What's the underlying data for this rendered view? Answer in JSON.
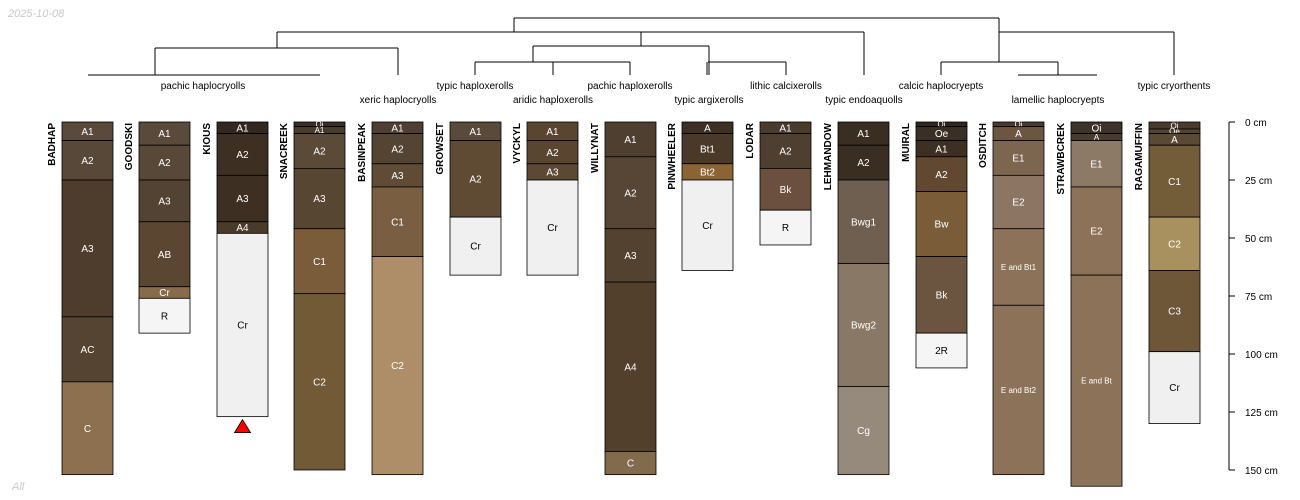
{
  "date_stamp": "2025-10-08",
  "footer_text": "All",
  "chart_data": {
    "type": "soil-profile-sketch",
    "depth_unit": "cm",
    "depth_axis": {
      "min": 0,
      "max": 150,
      "ticks": [
        0,
        25,
        50,
        75,
        100,
        125,
        150
      ],
      "tick_labels": [
        "0 cm",
        "25 cm",
        "50 cm",
        "75 cm",
        "100 cm",
        "125 cm",
        "150 cm"
      ]
    },
    "taxa": [
      "pachic haplocryolls",
      "xeric haplocryolls",
      "typic haploxerolls",
      "aridic haploxerolls",
      "pachic haploxerolls",
      "typic argixerolls",
      "lithic calcixerolls",
      "typic endoaquolls",
      "calcic haplocryepts",
      "lamellic haplocryepts",
      "typic cryorthents"
    ],
    "profiles": [
      {
        "name": "BADHAP",
        "horizons": [
          {
            "name": "A1",
            "top": 0,
            "bottom": 8,
            "color": "#5a4a3c"
          },
          {
            "name": "A2",
            "top": 8,
            "bottom": 25,
            "color": "#574838"
          },
          {
            "name": "A3",
            "top": 25,
            "bottom": 84,
            "color": "#4e3d2c"
          },
          {
            "name": "AC",
            "top": 84,
            "bottom": 112,
            "color": "#554431"
          },
          {
            "name": "C",
            "top": 112,
            "bottom": 152,
            "color": "#8c7050"
          }
        ]
      },
      {
        "name": "GOODSKI",
        "horizons": [
          {
            "name": "A1",
            "top": 0,
            "bottom": 10,
            "color": "#5a4a3c"
          },
          {
            "name": "A2",
            "top": 10,
            "bottom": 25,
            "color": "#574838"
          },
          {
            "name": "A3",
            "top": 25,
            "bottom": 43,
            "color": "#534333"
          },
          {
            "name": "AB",
            "top": 43,
            "bottom": 71,
            "color": "#5a4631"
          },
          {
            "name": "Cr",
            "top": 71,
            "bottom": 76,
            "color": "#876c4c"
          },
          {
            "name": "R",
            "top": 76,
            "bottom": 91,
            "color": "#f5f5f5"
          }
        ]
      },
      {
        "name": "KIOUS",
        "truncated": true,
        "horizons": [
          {
            "name": "A1",
            "top": 0,
            "bottom": 5,
            "color": "#33281f"
          },
          {
            "name": "A2",
            "top": 5,
            "bottom": 23,
            "color": "#3d2f22"
          },
          {
            "name": "A3",
            "top": 23,
            "bottom": 43,
            "color": "#3d2f21"
          },
          {
            "name": "A4",
            "top": 43,
            "bottom": 48,
            "color": "#4a3a2a"
          },
          {
            "name": "Cr",
            "top": 48,
            "bottom": 127,
            "color": "#f0f0f0"
          }
        ]
      },
      {
        "name": "SNACREEK",
        "horizons": [
          {
            "name": "Oi",
            "top": 0,
            "bottom": 2,
            "color": "#3a2f25"
          },
          {
            "name": "A1",
            "top": 2,
            "bottom": 5,
            "color": "#4a3c2d"
          },
          {
            "name": "A2",
            "top": 5,
            "bottom": 20,
            "color": "#5b4a38"
          },
          {
            "name": "A3",
            "top": 20,
            "bottom": 46,
            "color": "#574632"
          },
          {
            "name": "C1",
            "top": 46,
            "bottom": 74,
            "color": "#7a5c3a"
          },
          {
            "name": "C2",
            "top": 74,
            "bottom": 150,
            "color": "#715a35"
          }
        ]
      },
      {
        "name": "BASINPEAK",
        "horizons": [
          {
            "name": "A1",
            "top": 0,
            "bottom": 5,
            "color": "#4e3f30"
          },
          {
            "name": "A2",
            "top": 5,
            "bottom": 18,
            "color": "#544433"
          },
          {
            "name": "A3",
            "top": 18,
            "bottom": 28,
            "color": "#5f4b36"
          },
          {
            "name": "C1",
            "top": 28,
            "bottom": 58,
            "color": "#7a5e42"
          },
          {
            "name": "C2",
            "top": 58,
            "bottom": 152,
            "color": "#ad8e68"
          }
        ]
      },
      {
        "name": "GROWSET",
        "horizons": [
          {
            "name": "A1",
            "top": 0,
            "bottom": 8,
            "color": "#5a4a3c"
          },
          {
            "name": "A2",
            "top": 8,
            "bottom": 41,
            "color": "#5f4a33"
          },
          {
            "name": "Cr",
            "top": 41,
            "bottom": 66,
            "color": "#f0f0f0"
          }
        ]
      },
      {
        "name": "VYCKYL",
        "horizons": [
          {
            "name": "A1",
            "top": 0,
            "bottom": 8,
            "color": "#5a4530"
          },
          {
            "name": "A2",
            "top": 8,
            "bottom": 18,
            "color": "#5a4530"
          },
          {
            "name": "A3",
            "top": 18,
            "bottom": 25,
            "color": "#5d4834"
          },
          {
            "name": "Cr",
            "top": 25,
            "bottom": 66,
            "color": "#f0f0f0"
          }
        ]
      },
      {
        "name": "WILLYNAT",
        "horizons": [
          {
            "name": "A1",
            "top": 0,
            "bottom": 15,
            "color": "#4f3f30"
          },
          {
            "name": "A2",
            "top": 15,
            "bottom": 46,
            "color": "#574635"
          },
          {
            "name": "A3",
            "top": 46,
            "bottom": 69,
            "color": "#534230"
          },
          {
            "name": "A4",
            "top": 69,
            "bottom": 142,
            "color": "#523f2c"
          },
          {
            "name": "C",
            "top": 142,
            "bottom": 152,
            "color": "#826a4c"
          }
        ]
      },
      {
        "name": "PINWHEELER",
        "horizons": [
          {
            "name": "A",
            "top": 0,
            "bottom": 5,
            "color": "#3d2f22"
          },
          {
            "name": "Bt1",
            "top": 5,
            "bottom": 18,
            "color": "#4a3929"
          },
          {
            "name": "Bt2",
            "top": 18,
            "bottom": 25,
            "color": "#8a6434"
          },
          {
            "name": "Cr",
            "top": 25,
            "bottom": 64,
            "color": "#f0f0f0"
          }
        ]
      },
      {
        "name": "LODAR",
        "horizons": [
          {
            "name": "A1",
            "top": 0,
            "bottom": 5,
            "color": "#4a3c2d"
          },
          {
            "name": "A2",
            "top": 5,
            "bottom": 20,
            "color": "#4e3f30"
          },
          {
            "name": "Bk",
            "top": 20,
            "bottom": 38,
            "color": "#6b5040"
          },
          {
            "name": "R",
            "top": 38,
            "bottom": 53,
            "color": "#f5f5f5"
          }
        ]
      },
      {
        "name": "LEHMANDOW",
        "horizons": [
          {
            "name": "A1",
            "top": 0,
            "bottom": 10,
            "color": "#3a2d22"
          },
          {
            "name": "A2",
            "top": 10,
            "bottom": 25,
            "color": "#3a2d22"
          },
          {
            "name": "Bwg1",
            "top": 25,
            "bottom": 61,
            "color": "#6e5f51"
          },
          {
            "name": "Bwg2",
            "top": 61,
            "bottom": 114,
            "color": "#8a7866"
          },
          {
            "name": "Cg",
            "top": 114,
            "bottom": 152,
            "color": "#968a7c"
          }
        ]
      },
      {
        "name": "MUIRAL",
        "horizons": [
          {
            "name": "Oi",
            "top": 0,
            "bottom": 2,
            "color": "#2e261f"
          },
          {
            "name": "Oe",
            "top": 2,
            "bottom": 8,
            "color": "#3a2f25"
          },
          {
            "name": "A1",
            "top": 8,
            "bottom": 15,
            "color": "#3d2f22"
          },
          {
            "name": "A2",
            "top": 15,
            "bottom": 30,
            "color": "#624830"
          },
          {
            "name": "Bw",
            "top": 30,
            "bottom": 58,
            "color": "#7a5c38"
          },
          {
            "name": "Bk",
            "top": 58,
            "bottom": 91,
            "color": "#6b5540"
          },
          {
            "name": "2R",
            "top": 91,
            "bottom": 106,
            "color": "#f5f5f5"
          }
        ]
      },
      {
        "name": "OSDITCH",
        "horizons": [
          {
            "name": "Oi",
            "top": 0,
            "bottom": 2,
            "color": "#4a3c2d"
          },
          {
            "name": "A",
            "top": 2,
            "bottom": 8,
            "color": "#6b5642"
          },
          {
            "name": "E1",
            "top": 8,
            "bottom": 23,
            "color": "#7d6650"
          },
          {
            "name": "E2",
            "top": 23,
            "bottom": 46,
            "color": "#8c7663"
          },
          {
            "name": "E and Bt1",
            "top": 46,
            "bottom": 79,
            "color": "#8c7258"
          },
          {
            "name": "E and Bt2",
            "top": 79,
            "bottom": 152,
            "color": "#8c7258"
          }
        ]
      },
      {
        "name": "STRAWBCREK",
        "horizons": [
          {
            "name": "Oi",
            "top": 0,
            "bottom": 5,
            "color": "#3d3329"
          },
          {
            "name": "A",
            "top": 5,
            "bottom": 8,
            "color": "#4a3c2d"
          },
          {
            "name": "E1",
            "top": 8,
            "bottom": 28,
            "color": "#8c7a66"
          },
          {
            "name": "E2",
            "top": 28,
            "bottom": 66,
            "color": "#8c7258"
          },
          {
            "name": "E and Bt",
            "top": 66,
            "bottom": 157,
            "color": "#8c7258"
          }
        ]
      },
      {
        "name": "RAGAMUFFIN",
        "horizons": [
          {
            "name": "Oi",
            "top": 0,
            "bottom": 3,
            "color": "#4a3c2d"
          },
          {
            "name": "Oe",
            "top": 3,
            "bottom": 5,
            "color": "#54442f"
          },
          {
            "name": "A",
            "top": 5,
            "bottom": 10,
            "color": "#5a4934"
          },
          {
            "name": "C1",
            "top": 10,
            "bottom": 41,
            "color": "#735c38"
          },
          {
            "name": "C2",
            "top": 41,
            "bottom": 64,
            "color": "#a8915f"
          },
          {
            "name": "C3",
            "top": 64,
            "bottom": 99,
            "color": "#6e5638"
          },
          {
            "name": "Cr",
            "top": 99,
            "bottom": 130,
            "color": "#f0f0f0"
          }
        ]
      }
    ]
  }
}
